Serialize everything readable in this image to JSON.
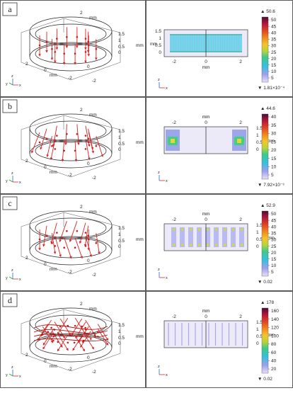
{
  "rows": [
    {
      "label": "a",
      "left": {
        "top_ticks": [
          "2",
          "mm"
        ],
        "z_ticks": [
          "1.5",
          "1",
          "0.5",
          "0"
        ],
        "z_unit": "mm",
        "bottom_ticks": [
          "0",
          "-2",
          "0",
          "mm",
          "2",
          "-2"
        ]
      },
      "right": {
        "x_ticks": [
          "-2",
          "0",
          "2"
        ],
        "x_unit": "mm",
        "y_ticks": [
          "1.5",
          "1",
          "0.5",
          "0"
        ],
        "y_unit": "mm",
        "colorbar_ticks": [
          "50",
          "45",
          "40",
          "35",
          "30",
          "25",
          "20",
          "15",
          "10",
          "5"
        ],
        "max": "▲ 50.6",
        "min": "▼ 1.81×10⁻⁴"
      }
    },
    {
      "label": "b",
      "left": {
        "top_ticks": [
          "2",
          "mm"
        ],
        "z_ticks": [
          "1.5",
          "1",
          "0.5",
          "0"
        ],
        "z_unit": "mm",
        "bottom_ticks": [
          "0",
          "-2",
          "0",
          "mm",
          "2",
          "-2"
        ]
      },
      "right": {
        "x_ticks": [
          "-2",
          "0",
          "2"
        ],
        "x_unit": "mm",
        "y_ticks": [
          "1.5",
          "1",
          "0.5",
          "0"
        ],
        "y_unit": "mm",
        "colorbar_ticks": [
          "40",
          "35",
          "30",
          "25",
          "20",
          "15",
          "10",
          "5"
        ],
        "max": "▲ 44.6",
        "min": "▼ 7.92×10⁻³"
      }
    },
    {
      "label": "c",
      "left": {
        "top_ticks": [
          "2",
          "mm"
        ],
        "z_ticks": [
          "1.5",
          "1",
          "0.5",
          "0"
        ],
        "z_unit": "mm",
        "bottom_ticks": [
          "0",
          "-2",
          "0",
          "mm",
          "2",
          "-2"
        ]
      },
      "right": {
        "x_ticks": [
          "-2",
          "0",
          "2"
        ],
        "x_unit": "mm",
        "y_ticks": [
          "1.5",
          "1",
          "0.5",
          "0"
        ],
        "y_unit": "mm",
        "colorbar_ticks": [
          "50",
          "45",
          "40",
          "35",
          "30",
          "25",
          "20",
          "15",
          "10",
          "5"
        ],
        "max": "▲ 52.9",
        "min": "▼ 0.02"
      }
    },
    {
      "label": "d",
      "left": {
        "top_ticks": [
          "2",
          "mm"
        ],
        "z_ticks": [
          "1.5",
          "1",
          "0.5",
          "0"
        ],
        "z_unit": "mm",
        "bottom_ticks": [
          "0",
          "-2",
          "0",
          "mm",
          "2",
          "-2"
        ]
      },
      "right": {
        "x_ticks": [
          "-2",
          "0",
          "2"
        ],
        "x_unit": "mm",
        "y_ticks": [
          "1.5",
          "1",
          "0.5",
          "0"
        ],
        "y_unit": "mm",
        "colorbar_ticks": [
          "160",
          "140",
          "120",
          "100",
          "80",
          "60",
          "40",
          "20"
        ],
        "max": "▲ 178",
        "min": "▼ 0.02"
      }
    }
  ],
  "axis_triad": {
    "z": "z",
    "y": "y",
    "x": "x"
  }
}
